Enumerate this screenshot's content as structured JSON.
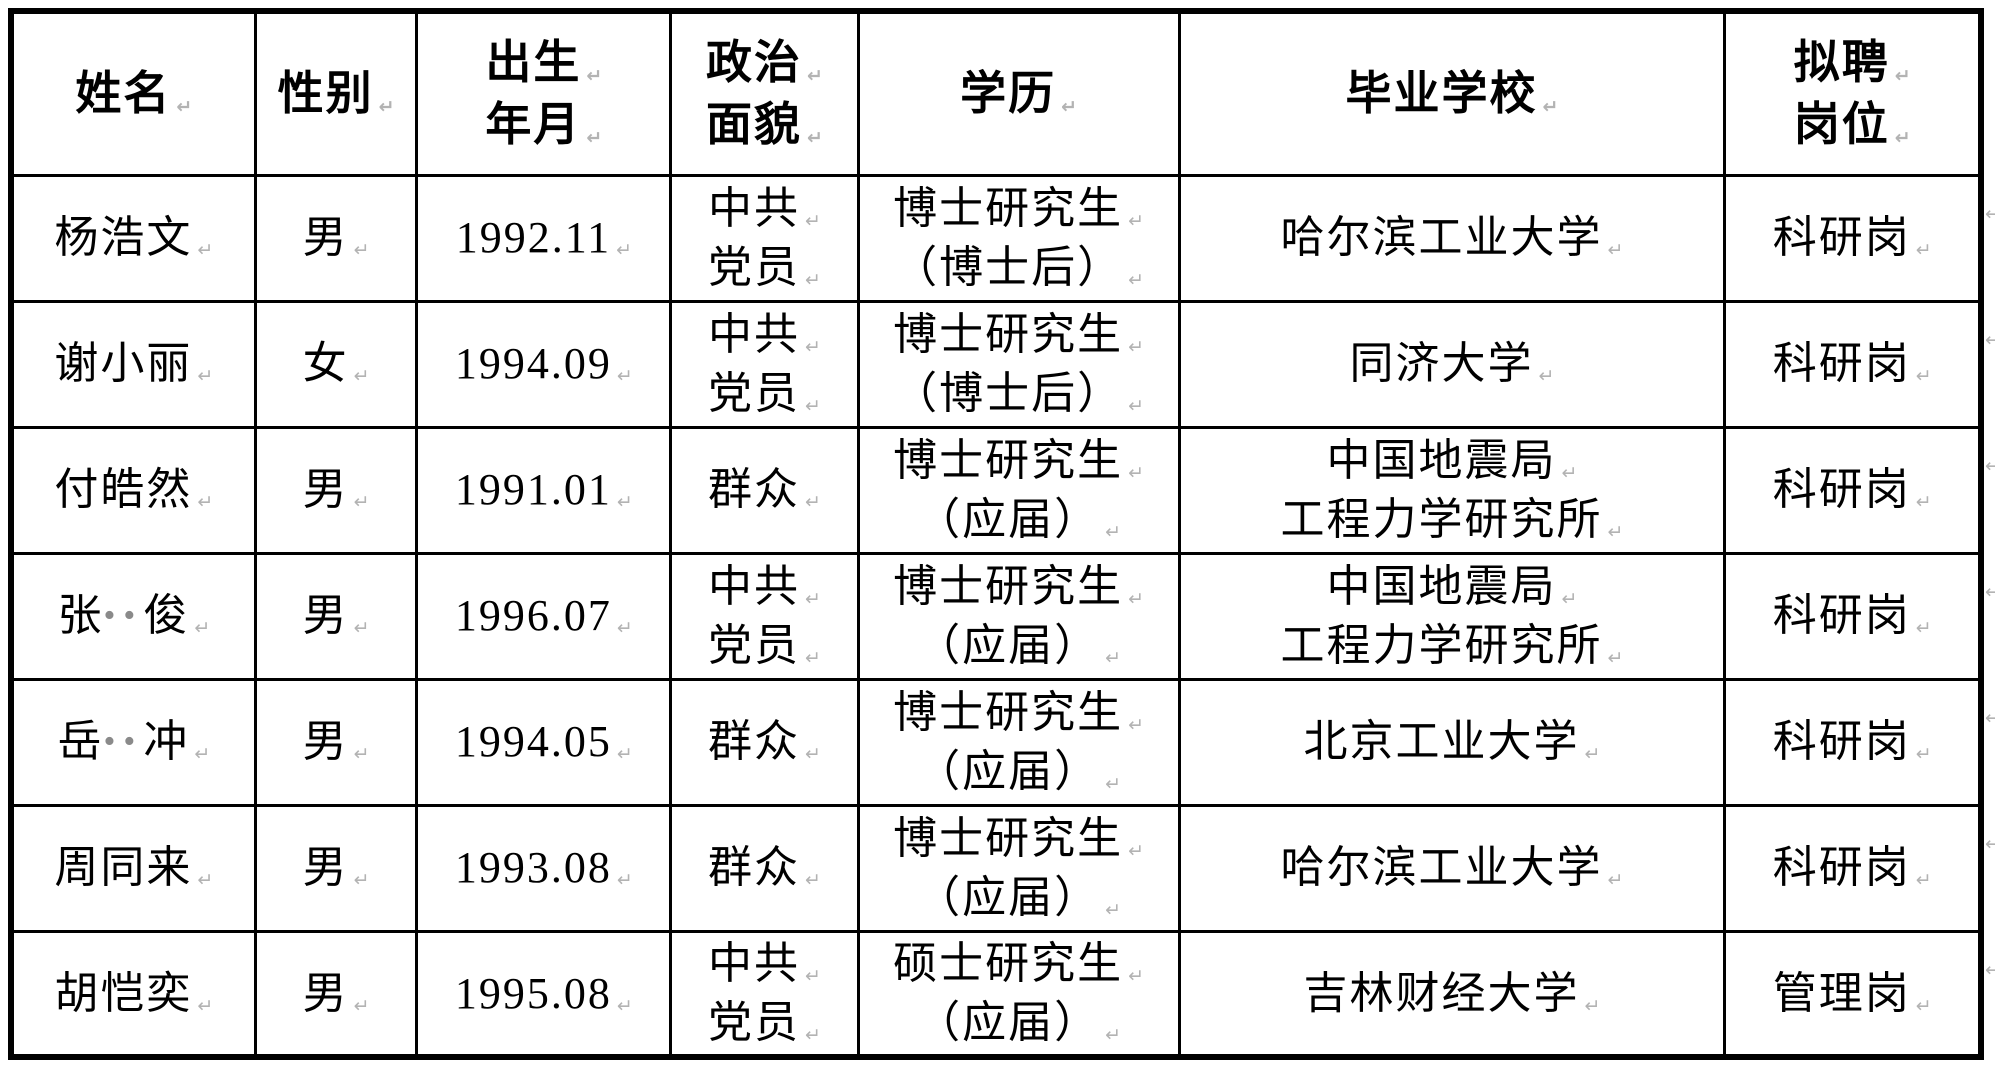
{
  "page": {
    "background_color": "#ffffff",
    "border_color": "#000000",
    "text_color": "#000000",
    "mark_color": "#b3b3b3",
    "redaction_dot_color": "#8a8a8a",
    "line_break_mark_symbol": "↵"
  },
  "table": {
    "columns": [
      {
        "key": "name",
        "label": "姓名"
      },
      {
        "key": "gender",
        "label": "性别"
      },
      {
        "key": "birth",
        "label": "出生\n年月"
      },
      {
        "key": "political",
        "label": "政治\n面貌"
      },
      {
        "key": "education",
        "label": "学历"
      },
      {
        "key": "school",
        "label": "毕业学校"
      },
      {
        "key": "position",
        "label": "拟聘\n岗位"
      }
    ],
    "rows": [
      {
        "name": "杨浩文",
        "gender": "男",
        "birth": "1992.11",
        "political": "中共\n党员",
        "education": "博士研究生\n（博士后）",
        "school": "哈尔滨工业大学",
        "position": "科研岗"
      },
      {
        "name": "谢小丽",
        "gender": "女",
        "birth": "1994.09",
        "political": "中共\n党员",
        "education": "博士研究生\n（博士后）",
        "school": "同济大学",
        "position": "科研岗"
      },
      {
        "name": "付皓然",
        "gender": "男",
        "birth": "1991.01",
        "political": "群众",
        "education": "博士研究生\n（应届）",
        "school": "中国地震局\n工程力学研究所",
        "position": "科研岗"
      },
      {
        "name": "张••俊",
        "gender": "男",
        "birth": "1996.07",
        "political": "中共\n党员",
        "education": "博士研究生\n（应届）",
        "school": "中国地震局\n工程力学研究所",
        "position": "科研岗"
      },
      {
        "name": "岳••冲",
        "gender": "男",
        "birth": "1994.05",
        "political": "群众",
        "education": "博士研究生\n（应届）",
        "school": "北京工业大学",
        "position": "科研岗"
      },
      {
        "name": "周同来",
        "gender": "男",
        "birth": "1993.08",
        "political": "群众",
        "education": "博士研究生\n（应届）",
        "school": "哈尔滨工业大学",
        "position": "科研岗"
      },
      {
        "name": "胡恺奕",
        "gender": "男",
        "birth": "1995.08",
        "political": "中共\n党员",
        "education": "硕士研究生\n（应届）",
        "school": "吉林财经大学",
        "position": "管理岗"
      }
    ]
  }
}
